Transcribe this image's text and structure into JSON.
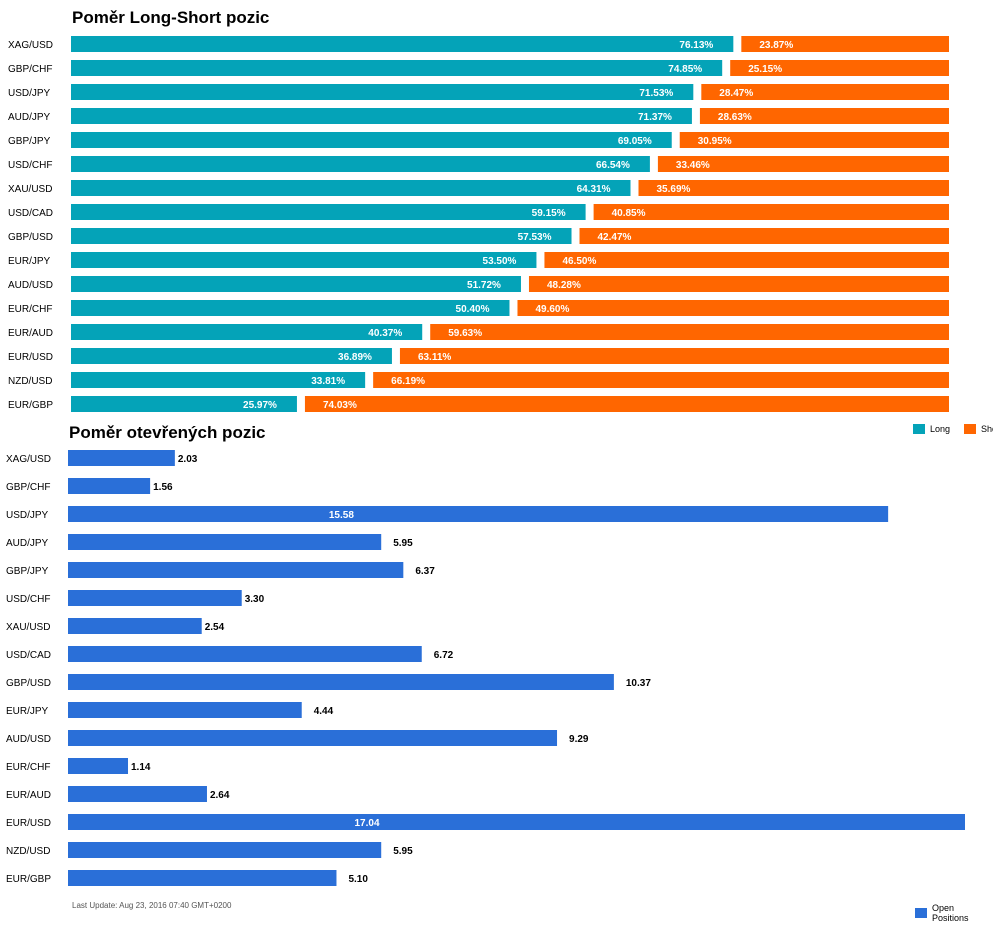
{
  "colors": {
    "long": "#04a3b8",
    "short": "#ff6600",
    "open": "#2a6fd8"
  },
  "long_short": {
    "title": "Poměr Long-Short pozic",
    "legend": {
      "long": "Long",
      "short": "Short"
    }
  },
  "open_positions": {
    "title": "Poměr otevřených pozic",
    "legend": {
      "label": "Open Positions"
    }
  },
  "footer": {
    "last_update": "Last Update: Aug 23, 2016 07:40 GMT+0200"
  },
  "chart_data": [
    {
      "type": "bar",
      "stacked": true,
      "orientation": "horizontal",
      "title": "Poměr Long-Short pozic",
      "categories": [
        "XAG/USD",
        "GBP/CHF",
        "USD/JPY",
        "AUD/JPY",
        "GBP/JPY",
        "USD/CHF",
        "XAU/USD",
        "USD/CAD",
        "GBP/USD",
        "EUR/JPY",
        "AUD/USD",
        "EUR/CHF",
        "EUR/AUD",
        "EUR/USD",
        "NZD/USD",
        "EUR/GBP"
      ],
      "series": [
        {
          "name": "Long",
          "values": [
            76.13,
            74.85,
            71.53,
            71.37,
            69.05,
            66.54,
            64.31,
            59.15,
            57.53,
            53.5,
            51.72,
            50.4,
            40.37,
            36.89,
            33.81,
            25.97
          ],
          "labels": [
            "76.13%",
            "74.85%",
            "71.53%",
            "71.37%",
            "69.05%",
            "66.54%",
            "64.31%",
            "59.15%",
            "57.53%",
            "53.50%",
            "51.72%",
            "50.40%",
            "40.37%",
            "36.89%",
            "33.81%",
            "25.97%"
          ]
        },
        {
          "name": "Short",
          "values": [
            23.87,
            25.15,
            28.47,
            28.63,
            30.95,
            33.46,
            35.69,
            40.85,
            42.47,
            46.5,
            48.28,
            49.6,
            59.63,
            63.11,
            66.19,
            74.03
          ],
          "labels": [
            "23.87%",
            "25.15%",
            "28.47%",
            "28.63%",
            "30.95%",
            "33.46%",
            "35.69%",
            "40.85%",
            "42.47%",
            "46.50%",
            "48.28%",
            "49.60%",
            "59.63%",
            "63.11%",
            "66.19%",
            "74.03%"
          ]
        }
      ],
      "legend_position": "bottom-right",
      "grid": false
    },
    {
      "type": "bar",
      "orientation": "horizontal",
      "title": "Poměr otevřených pozic",
      "categories": [
        "XAG/USD",
        "GBP/CHF",
        "USD/JPY",
        "AUD/JPY",
        "GBP/JPY",
        "USD/CHF",
        "XAU/USD",
        "USD/CAD",
        "GBP/USD",
        "EUR/JPY",
        "AUD/USD",
        "EUR/CHF",
        "EUR/AUD",
        "EUR/USD",
        "NZD/USD",
        "EUR/GBP"
      ],
      "series": [
        {
          "name": "Open Positions",
          "values": [
            2.03,
            1.56,
            15.58,
            5.95,
            6.37,
            3.3,
            2.54,
            6.72,
            10.37,
            4.44,
            9.29,
            1.14,
            2.64,
            17.04,
            5.95,
            5.1
          ],
          "labels": [
            "2.03",
            "1.56",
            "15.58",
            "5.95",
            "6.37",
            "3.30",
            "2.54",
            "6.72",
            "10.37",
            "4.44",
            "9.29",
            "1.14",
            "2.64",
            "17.04",
            "5.95",
            "5.10"
          ]
        }
      ],
      "legend_position": "bottom-right",
      "grid": false
    }
  ]
}
